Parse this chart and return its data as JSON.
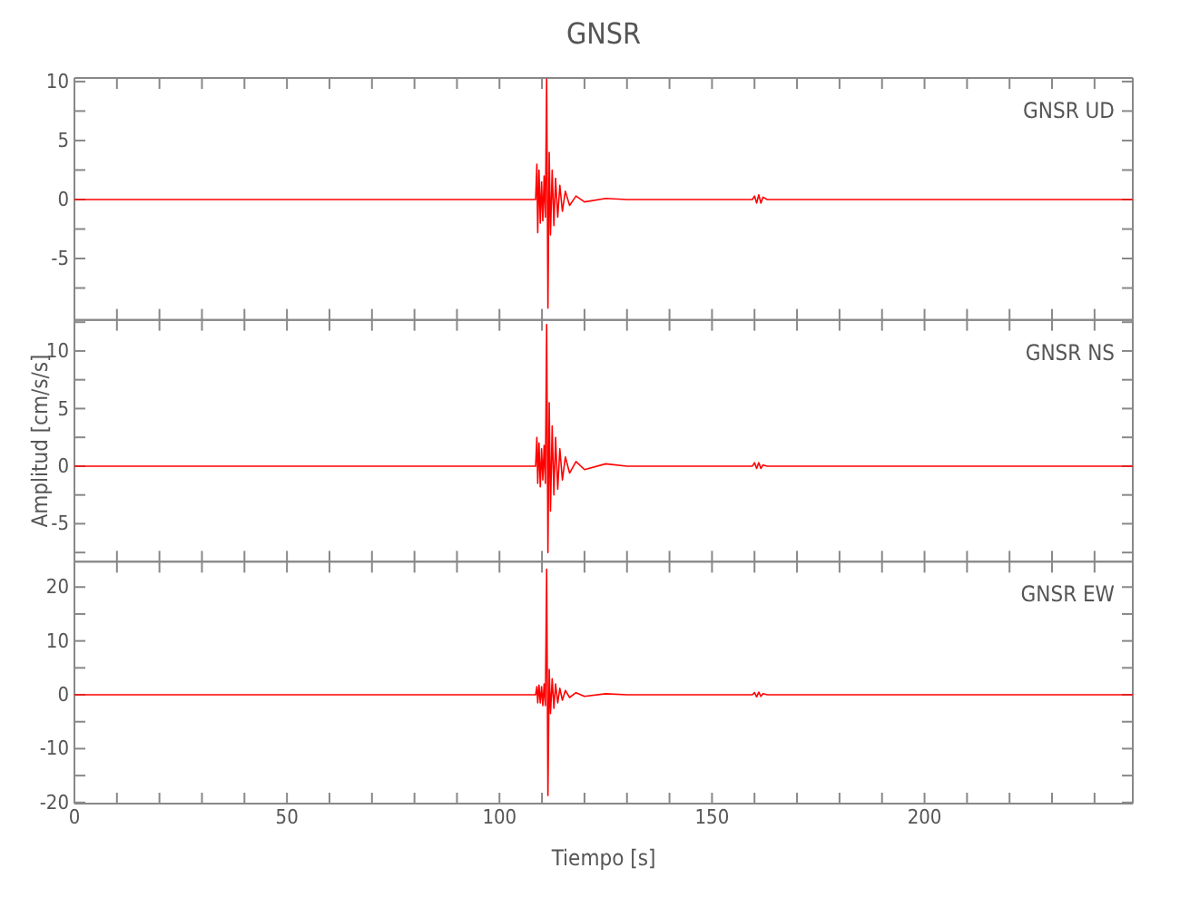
{
  "chart_data": [
    {
      "type": "line",
      "title": "GNSR",
      "annotations": [
        "GNSR UD"
      ],
      "tick_labels": "y",
      "xlim": [
        0,
        249
      ],
      "ylim": [
        -10.2,
        10.3
      ],
      "xticks": [
        0,
        {
          "value": 10,
          "label": null
        },
        {
          "value": 20,
          "label": null
        },
        {
          "value": 30,
          "label": null
        },
        {
          "value": 40,
          "label": null
        },
        50,
        {
          "value": 60,
          "label": null
        },
        {
          "value": 70,
          "label": null
        },
        {
          "value": 80,
          "label": null
        },
        {
          "value": 90,
          "label": null
        },
        100,
        {
          "value": 110,
          "label": null
        },
        {
          "value": 120,
          "label": null
        },
        {
          "value": 130,
          "label": null
        },
        {
          "value": 140,
          "label": null
        },
        150,
        {
          "value": 160,
          "label": null
        },
        {
          "value": 170,
          "label": null
        },
        {
          "value": 180,
          "label": null
        },
        {
          "value": 190,
          "label": null
        },
        200,
        {
          "value": 210,
          "label": null
        },
        {
          "value": 220,
          "label": null
        },
        {
          "value": 230,
          "label": null
        },
        {
          "value": 240,
          "label": null
        }
      ],
      "yticks": [
        {
          "value": -7.5,
          "label": null
        },
        -5,
        {
          "value": -2.5,
          "label": null
        },
        0,
        {
          "value": 2.5,
          "label": null
        },
        5,
        {
          "value": 7.5,
          "label": null
        },
        10
      ],
      "grid": false,
      "marker": "none",
      "line_style": "solid",
      "series": [
        {
          "color": "#ff0000",
          "x": [
            0,
            20,
            40,
            60,
            80,
            100,
            108.5,
            108.8,
            109.0,
            109.3,
            109.6,
            109.9,
            110.2,
            110.5,
            110.8,
            111.1,
            111.4,
            111.7,
            112.0,
            112.4,
            112.8,
            113.2,
            113.7,
            114.2,
            114.8,
            115.5,
            116.5,
            118,
            120,
            125,
            130,
            140,
            150,
            159.5,
            160,
            160.5,
            161,
            161.5,
            162,
            163,
            170,
            190,
            210,
            230,
            249
          ],
          "values": [
            0,
            0,
            0,
            0,
            0,
            0,
            0,
            3.0,
            -2.8,
            2.5,
            -2,
            1.5,
            -1.8,
            2,
            -1.5,
            10.2,
            -9.2,
            4,
            -3,
            2.5,
            -2.2,
            1.8,
            -1.5,
            1.2,
            -1,
            0.7,
            -0.5,
            0.3,
            -0.2,
            0.1,
            0,
            0,
            0,
            0,
            0.3,
            -0.3,
            0.4,
            -0.3,
            0.2,
            0,
            0,
            0,
            0,
            0,
            0
          ]
        }
      ]
    },
    {
      "type": "line",
      "ylabel": "Amplitud [cm/s/s]",
      "annotations": [
        "GNSR NS"
      ],
      "tick_labels": "y",
      "xlim": [
        0,
        249
      ],
      "ylim": [
        -8.3,
        12.7
      ],
      "xticks": [
        0,
        {
          "value": 10,
          "label": null
        },
        {
          "value": 20,
          "label": null
        },
        {
          "value": 30,
          "label": null
        },
        {
          "value": 40,
          "label": null
        },
        50,
        {
          "value": 60,
          "label": null
        },
        {
          "value": 70,
          "label": null
        },
        {
          "value": 80,
          "label": null
        },
        {
          "value": 90,
          "label": null
        },
        100,
        {
          "value": 110,
          "label": null
        },
        {
          "value": 120,
          "label": null
        },
        {
          "value": 130,
          "label": null
        },
        {
          "value": 140,
          "label": null
        },
        150,
        {
          "value": 160,
          "label": null
        },
        {
          "value": 170,
          "label": null
        },
        {
          "value": 180,
          "label": null
        },
        {
          "value": 190,
          "label": null
        },
        200,
        {
          "value": 210,
          "label": null
        },
        {
          "value": 220,
          "label": null
        },
        {
          "value": 230,
          "label": null
        },
        {
          "value": 240,
          "label": null
        }
      ],
      "yticks": [
        {
          "value": -7.5,
          "label": null
        },
        -5,
        {
          "value": -2.5,
          "label": null
        },
        0,
        {
          "value": 2.5,
          "label": null
        },
        5,
        {
          "value": 7.5,
          "label": null
        },
        10,
        {
          "value": 12.5,
          "label": null
        }
      ],
      "grid": false,
      "marker": "none",
      "line_style": "solid",
      "series": [
        {
          "color": "#ff0000",
          "x": [
            0,
            20,
            40,
            60,
            80,
            100,
            108.5,
            108.8,
            109.0,
            109.3,
            109.6,
            109.9,
            110.2,
            110.5,
            110.8,
            111.1,
            111.4,
            111.7,
            112.0,
            112.4,
            112.8,
            113.2,
            113.7,
            114.2,
            114.8,
            115.5,
            116.5,
            118,
            120,
            125,
            130,
            140,
            150,
            159.5,
            160,
            160.5,
            161,
            161.5,
            162,
            163,
            170,
            190,
            210,
            230,
            249
          ],
          "values": [
            0,
            0,
            0,
            0,
            0,
            0,
            0,
            2.5,
            -1.5,
            2,
            -1.8,
            1.5,
            -1.2,
            1.8,
            -1.5,
            12.3,
            -7.5,
            5.5,
            -3.9,
            3.5,
            -2.5,
            2.5,
            -2,
            1.5,
            -1.2,
            0.8,
            -0.6,
            0.4,
            -0.3,
            0.2,
            0,
            0,
            0,
            0,
            0.3,
            -0.2,
            0.3,
            -0.2,
            0.1,
            0,
            0,
            0,
            0,
            0,
            0
          ]
        }
      ]
    },
    {
      "type": "line",
      "xlabel": "Tiempo [s]",
      "annotations": [
        "GNSR EW"
      ],
      "xlim": [
        0,
        249
      ],
      "ylim": [
        -20.2,
        24.7
      ],
      "xticks": [
        0,
        {
          "value": 10,
          "label": null
        },
        {
          "value": 20,
          "label": null
        },
        {
          "value": 30,
          "label": null
        },
        {
          "value": 40,
          "label": null
        },
        50,
        {
          "value": 60,
          "label": null
        },
        {
          "value": 70,
          "label": null
        },
        {
          "value": 80,
          "label": null
        },
        {
          "value": 90,
          "label": null
        },
        100,
        {
          "value": 110,
          "label": null
        },
        {
          "value": 120,
          "label": null
        },
        {
          "value": 130,
          "label": null
        },
        {
          "value": 140,
          "label": null
        },
        150,
        {
          "value": 160,
          "label": null
        },
        {
          "value": 170,
          "label": null
        },
        {
          "value": 180,
          "label": null
        },
        {
          "value": 190,
          "label": null
        },
        200,
        {
          "value": 210,
          "label": null
        },
        {
          "value": 220,
          "label": null
        },
        {
          "value": 230,
          "label": null
        },
        {
          "value": 240,
          "label": null
        }
      ],
      "yticks": [
        -20,
        {
          "value": -15,
          "label": null
        },
        -10,
        {
          "value": -5,
          "label": null
        },
        0,
        {
          "value": 5,
          "label": null
        },
        10,
        {
          "value": 15,
          "label": null
        },
        20
      ],
      "grid": false,
      "marker": "none",
      "line_style": "solid",
      "series": [
        {
          "color": "#ff0000",
          "x": [
            0,
            20,
            40,
            60,
            80,
            100,
            108.5,
            108.8,
            109.0,
            109.3,
            109.6,
            109.9,
            110.2,
            110.5,
            110.8,
            111.1,
            111.4,
            111.7,
            112.0,
            112.4,
            112.8,
            113.2,
            113.7,
            114.2,
            114.8,
            115.5,
            116.5,
            118,
            120,
            125,
            130,
            140,
            150,
            159.5,
            160,
            160.5,
            161,
            161.5,
            162,
            163,
            170,
            190,
            210,
            230,
            249
          ],
          "values": [
            0,
            0,
            0,
            0,
            0,
            0,
            0,
            1.5,
            -1.5,
            1.8,
            -1.5,
            1.5,
            -2,
            2,
            -2,
            23.3,
            -18.7,
            4.7,
            -3.5,
            3,
            -2.5,
            2,
            -1.5,
            1.2,
            -1,
            0.8,
            -0.5,
            0.4,
            -0.3,
            0.2,
            0,
            0,
            0,
            0,
            0.4,
            -0.4,
            0.5,
            -0.3,
            0.2,
            0,
            0,
            0,
            0,
            0,
            0
          ]
        }
      ]
    }
  ]
}
